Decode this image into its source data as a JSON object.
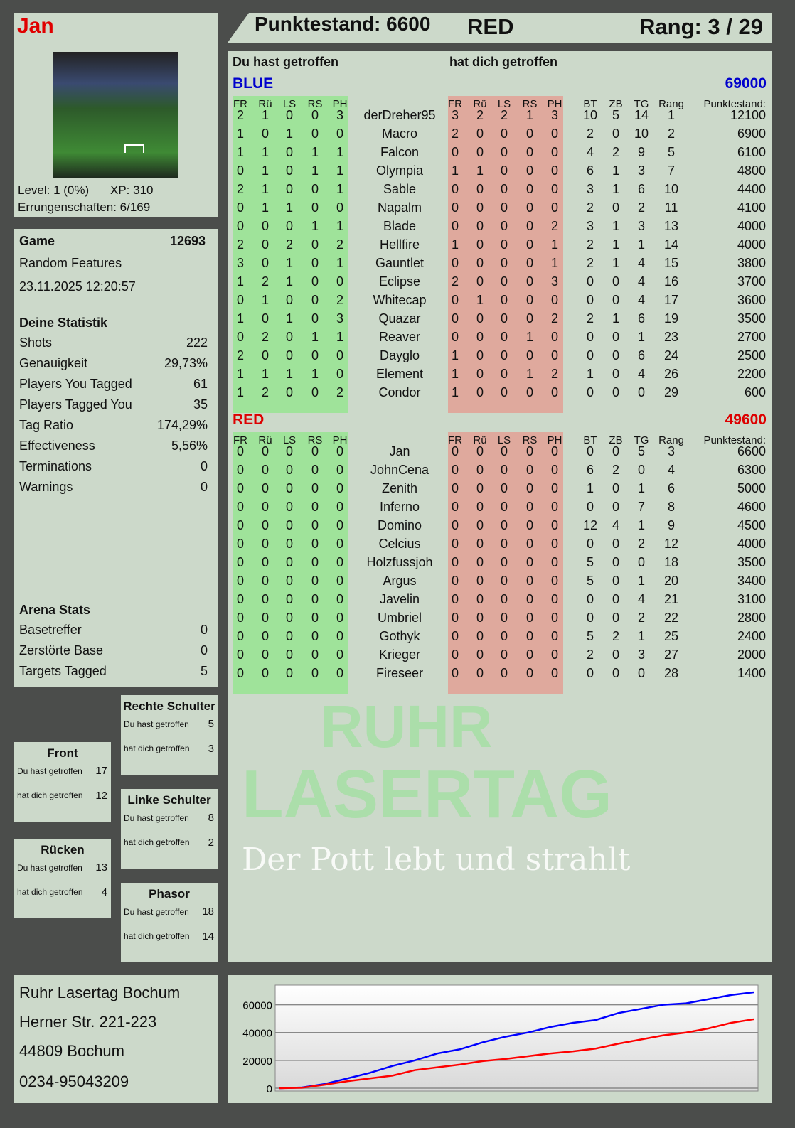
{
  "player": {
    "name": "Jan",
    "level": "Level: 1 (0%)",
    "xp": "XP: 310",
    "achievements": "Errungenschaften: 6/169"
  },
  "header": {
    "score": "Punktestand: 6600",
    "team": "RED",
    "rank": "Rang: 3 / 29"
  },
  "game": {
    "label": "Game",
    "id": "12693",
    "mode": "Random Features",
    "datetime": "23.11.2025 12:20:57"
  },
  "stats": {
    "title": "Deine Statistik",
    "items": [
      [
        "Shots",
        "222"
      ],
      [
        "Genauigkeit",
        "29,73%"
      ],
      [
        "Players You Tagged",
        "61"
      ],
      [
        "Players Tagged You",
        "35"
      ],
      [
        "Tag Ratio",
        "174,29%"
      ],
      [
        "Effectiveness",
        "5,56%"
      ],
      [
        "Terminations",
        "0"
      ],
      [
        "Warnings",
        "0"
      ]
    ]
  },
  "arena": {
    "title": "Arena Stats",
    "items": [
      [
        "Basetreffer",
        "0"
      ],
      [
        "Zerstörte Base",
        "0"
      ],
      [
        "Targets Tagged",
        "5"
      ]
    ]
  },
  "zones": [
    {
      "name": "Rechte Schulter",
      "hit": "5",
      "got": "3"
    },
    {
      "name": "Front",
      "hit": "17",
      "got": "12"
    },
    {
      "name": "Linke Schulter",
      "hit": "8",
      "got": "2"
    },
    {
      "name": "Rücken",
      "hit": "13",
      "got": "4"
    },
    {
      "name": "Phasor",
      "hit": "18",
      "got": "14"
    }
  ],
  "zone_labels": {
    "hit": "Du hast getroffen",
    "got": "hat dich getroffen"
  },
  "main": {
    "you_hit": "Du hast getroffen",
    "hit_you": "hat dich getroffen"
  },
  "columns": [
    "FR",
    "Rü",
    "LS",
    "RS",
    "PH",
    "",
    "FR",
    "Rü",
    "LS",
    "RS",
    "PH",
    "BT",
    "ZB",
    "TG",
    "Rang",
    "Punktestand:"
  ],
  "teams": [
    {
      "name": "BLUE",
      "total": "69000",
      "color": "#0000cc",
      "rows": [
        [
          "2",
          "1",
          "0",
          "0",
          "3",
          "derDreher95",
          "3",
          "2",
          "2",
          "1",
          "3",
          "10",
          "5",
          "14",
          "1",
          "12100"
        ],
        [
          "1",
          "0",
          "1",
          "0",
          "0",
          "Macro",
          "2",
          "0",
          "0",
          "0",
          "0",
          "2",
          "0",
          "10",
          "2",
          "6900"
        ],
        [
          "1",
          "1",
          "0",
          "1",
          "1",
          "Falcon",
          "0",
          "0",
          "0",
          "0",
          "0",
          "4",
          "2",
          "9",
          "5",
          "6100"
        ],
        [
          "0",
          "1",
          "0",
          "1",
          "1",
          "Olympia",
          "1",
          "1",
          "0",
          "0",
          "0",
          "6",
          "1",
          "3",
          "7",
          "4800"
        ],
        [
          "2",
          "1",
          "0",
          "0",
          "1",
          "Sable",
          "0",
          "0",
          "0",
          "0",
          "0",
          "3",
          "1",
          "6",
          "10",
          "4400"
        ],
        [
          "0",
          "1",
          "1",
          "0",
          "0",
          "Napalm",
          "0",
          "0",
          "0",
          "0",
          "0",
          "2",
          "0",
          "2",
          "11",
          "4100"
        ],
        [
          "0",
          "0",
          "0",
          "1",
          "1",
          "Blade",
          "0",
          "0",
          "0",
          "0",
          "2",
          "3",
          "1",
          "3",
          "13",
          "4000"
        ],
        [
          "2",
          "0",
          "2",
          "0",
          "2",
          "Hellfire",
          "1",
          "0",
          "0",
          "0",
          "1",
          "2",
          "1",
          "1",
          "14",
          "4000"
        ],
        [
          "3",
          "0",
          "1",
          "0",
          "1",
          "Gauntlet",
          "0",
          "0",
          "0",
          "0",
          "1",
          "2",
          "1",
          "4",
          "15",
          "3800"
        ],
        [
          "1",
          "2",
          "1",
          "0",
          "0",
          "Eclipse",
          "2",
          "0",
          "0",
          "0",
          "3",
          "0",
          "0",
          "4",
          "16",
          "3700"
        ],
        [
          "0",
          "1",
          "0",
          "0",
          "2",
          "Whitecap",
          "0",
          "1",
          "0",
          "0",
          "0",
          "0",
          "0",
          "4",
          "17",
          "3600"
        ],
        [
          "1",
          "0",
          "1",
          "0",
          "3",
          "Quazar",
          "0",
          "0",
          "0",
          "0",
          "2",
          "2",
          "1",
          "6",
          "19",
          "3500"
        ],
        [
          "0",
          "2",
          "0",
          "1",
          "1",
          "Reaver",
          "0",
          "0",
          "0",
          "1",
          "0",
          "0",
          "0",
          "1",
          "23",
          "2700"
        ],
        [
          "2",
          "0",
          "0",
          "0",
          "0",
          "Dayglo",
          "1",
          "0",
          "0",
          "0",
          "0",
          "0",
          "0",
          "6",
          "24",
          "2500"
        ],
        [
          "1",
          "1",
          "1",
          "1",
          "0",
          "Element",
          "1",
          "0",
          "0",
          "1",
          "2",
          "1",
          "0",
          "4",
          "26",
          "2200"
        ],
        [
          "1",
          "2",
          "0",
          "0",
          "2",
          "Condor",
          "1",
          "0",
          "0",
          "0",
          "0",
          "0",
          "0",
          "0",
          "29",
          "600"
        ]
      ]
    },
    {
      "name": "RED",
      "total": "49600",
      "color": "#dd0000",
      "rows": [
        [
          "0",
          "0",
          "0",
          "0",
          "0",
          "Jan",
          "0",
          "0",
          "0",
          "0",
          "0",
          "0",
          "0",
          "5",
          "3",
          "6600"
        ],
        [
          "0",
          "0",
          "0",
          "0",
          "0",
          "JohnCena",
          "0",
          "0",
          "0",
          "0",
          "0",
          "6",
          "2",
          "0",
          "4",
          "6300"
        ],
        [
          "0",
          "0",
          "0",
          "0",
          "0",
          "Zenith",
          "0",
          "0",
          "0",
          "0",
          "0",
          "1",
          "0",
          "1",
          "6",
          "5000"
        ],
        [
          "0",
          "0",
          "0",
          "0",
          "0",
          "Inferno",
          "0",
          "0",
          "0",
          "0",
          "0",
          "0",
          "0",
          "7",
          "8",
          "4600"
        ],
        [
          "0",
          "0",
          "0",
          "0",
          "0",
          "Domino",
          "0",
          "0",
          "0",
          "0",
          "0",
          "12",
          "4",
          "1",
          "9",
          "4500"
        ],
        [
          "0",
          "0",
          "0",
          "0",
          "0",
          "Celcius",
          "0",
          "0",
          "0",
          "0",
          "0",
          "0",
          "0",
          "2",
          "12",
          "4000"
        ],
        [
          "0",
          "0",
          "0",
          "0",
          "0",
          "Holzfussjoh",
          "0",
          "0",
          "0",
          "0",
          "0",
          "5",
          "0",
          "0",
          "18",
          "3500"
        ],
        [
          "0",
          "0",
          "0",
          "0",
          "0",
          "Argus",
          "0",
          "0",
          "0",
          "0",
          "0",
          "5",
          "0",
          "1",
          "20",
          "3400"
        ],
        [
          "0",
          "0",
          "0",
          "0",
          "0",
          "Javelin",
          "0",
          "0",
          "0",
          "0",
          "0",
          "0",
          "0",
          "4",
          "21",
          "3100"
        ],
        [
          "0",
          "0",
          "0",
          "0",
          "0",
          "Umbriel",
          "0",
          "0",
          "0",
          "0",
          "0",
          "0",
          "0",
          "2",
          "22",
          "2800"
        ],
        [
          "0",
          "0",
          "0",
          "0",
          "0",
          "Gothyk",
          "0",
          "0",
          "0",
          "0",
          "0",
          "5",
          "2",
          "1",
          "25",
          "2400"
        ],
        [
          "0",
          "0",
          "0",
          "0",
          "0",
          "Krieger",
          "0",
          "0",
          "0",
          "0",
          "0",
          "2",
          "0",
          "3",
          "27",
          "2000"
        ],
        [
          "0",
          "0",
          "0",
          "0",
          "0",
          "Fireseer",
          "0",
          "0",
          "0",
          "0",
          "0",
          "0",
          "0",
          "0",
          "28",
          "1400"
        ]
      ]
    }
  ],
  "address": [
    "Ruhr Lasertag Bochum",
    "Herner Str. 221-223",
    "44809 Bochum",
    "0234-95043209"
  ],
  "watermark": {
    "line1": "RUHR",
    "line2": "LASERTAG",
    "tagline": "Der Pott lebt und strahlt"
  },
  "chart_data": {
    "type": "line",
    "ylim": [
      0,
      70000
    ],
    "yticks": [
      "0",
      "20000",
      "40000",
      "60000"
    ],
    "grid": true,
    "series": [
      {
        "color": "#0000ff",
        "values": [
          0,
          500,
          3000,
          7000,
          11000,
          16000,
          20000,
          25000,
          28000,
          33000,
          37000,
          40000,
          44000,
          47000,
          49000,
          54000,
          57000,
          60000,
          61000,
          64000,
          67000,
          69000
        ]
      },
      {
        "color": "#ff0000",
        "values": [
          0,
          300,
          2500,
          5000,
          7000,
          9000,
          13000,
          15000,
          17000,
          19500,
          21000,
          23000,
          25000,
          26500,
          28500,
          32000,
          35000,
          38000,
          40000,
          43000,
          47000,
          49600
        ]
      }
    ]
  }
}
